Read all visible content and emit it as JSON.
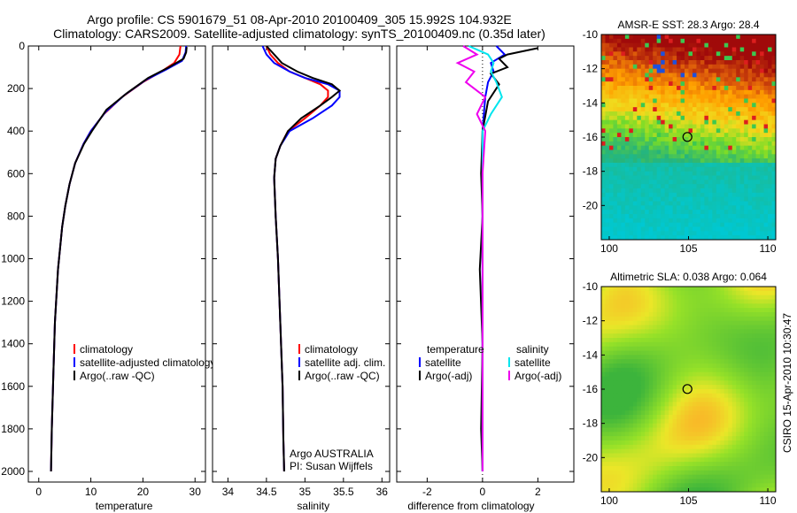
{
  "title": {
    "line1": "Argo profile: CS 5901679_51 08-Apr-2010 20100409_305 15.992S 104.932E",
    "line2": "Climatology: CARS2009. Satellite-adjusted climatology: synTS_20100409.nc (0.35d later)"
  },
  "credit": "CSIRO 15-Apr-2010 10:30:47",
  "chart_data": [
    {
      "id": "temperature",
      "type": "line",
      "xlabel": "temperature",
      "ylabel": "",
      "xlim": [
        -2,
        32
      ],
      "ylim": [
        2050,
        0
      ],
      "xticks": [
        0,
        10,
        20,
        30
      ],
      "yticks": [
        0,
        200,
        400,
        600,
        800,
        1000,
        1200,
        1400,
        1600,
        1800,
        2000
      ],
      "legend": [
        "climatology",
        "satellite-adjusted climatology",
        "Argo(..raw -QC)"
      ],
      "series": [
        {
          "name": "climatology",
          "color": "#ff0000",
          "x": [
            27.2,
            27.0,
            26.0,
            23.5,
            20.0,
            16.0,
            12.5,
            10.0,
            8.6,
            7.0,
            5.9,
            5.1,
            4.5,
            3.7,
            3.1,
            2.8,
            2.5,
            2.35
          ],
          "y": [
            0,
            40,
            80,
            120,
            170,
            240,
            320,
            400,
            460,
            550,
            650,
            750,
            850,
            1050,
            1300,
            1550,
            1800,
            2000
          ]
        },
        {
          "name": "satellite-adjusted climatology",
          "color": "#0000ff",
          "x": [
            28.3,
            28.2,
            27.5,
            24.5,
            20.5,
            16.5,
            12.8,
            10.0,
            8.6,
            7.0,
            5.9,
            5.1,
            4.5,
            3.7,
            3.1,
            2.8,
            2.5,
            2.35
          ],
          "y": [
            0,
            30,
            70,
            110,
            160,
            230,
            310,
            400,
            460,
            550,
            650,
            750,
            850,
            1050,
            1300,
            1550,
            1800,
            2000
          ]
        },
        {
          "name": "Argo(..raw -QC)",
          "color": "#000000",
          "x": [
            28.4,
            28.3,
            27.8,
            25.0,
            21.0,
            17.0,
            13.0,
            10.2,
            8.7,
            7.0,
            5.9,
            5.1,
            4.5,
            3.7,
            3.1,
            2.8,
            2.5,
            2.35
          ],
          "y": [
            5,
            30,
            60,
            100,
            150,
            220,
            300,
            400,
            460,
            550,
            650,
            750,
            850,
            1050,
            1300,
            1550,
            1800,
            2000
          ]
        }
      ]
    },
    {
      "id": "salinity",
      "type": "line",
      "xlabel": "salinity",
      "ylabel": "",
      "xlim": [
        33.8,
        36.1
      ],
      "ylim": [
        2050,
        0
      ],
      "xticks": [
        34,
        34.5,
        35,
        35.5,
        36
      ],
      "yticks": [],
      "legend": [
        "climatology",
        "satellite adj. clim.",
        "Argo(..raw -QC)"
      ],
      "annotation": [
        "Argo AUSTRALIA",
        "PI: Susan Wijffels"
      ],
      "series": [
        {
          "name": "climatology",
          "color": "#ff0000",
          "x": [
            34.5,
            34.55,
            34.65,
            34.8,
            35.0,
            35.2,
            35.3,
            35.3,
            35.2,
            35.0,
            34.78,
            34.68,
            34.62,
            34.6,
            34.62,
            34.65,
            34.68,
            34.71,
            34.72,
            34.73
          ],
          "y": [
            0,
            40,
            80,
            120,
            150,
            180,
            210,
            240,
            280,
            340,
            400,
            470,
            530,
            620,
            800,
            1000,
            1300,
            1600,
            1850,
            2000
          ]
        },
        {
          "name": "satellite adj. clim.",
          "color": "#0000ff",
          "x": [
            34.45,
            34.5,
            34.6,
            34.8,
            35.0,
            35.3,
            35.45,
            35.45,
            35.35,
            35.1,
            34.8,
            34.68,
            34.62,
            34.6,
            34.62,
            34.65,
            34.68,
            34.71,
            34.72,
            34.73
          ],
          "y": [
            0,
            40,
            80,
            120,
            150,
            180,
            210,
            240,
            280,
            340,
            400,
            470,
            530,
            620,
            800,
            1000,
            1300,
            1600,
            1850,
            2000
          ]
        },
        {
          "name": "Argo(..raw -QC)",
          "color": "#000000",
          "x": [
            34.5,
            34.6,
            34.7,
            34.9,
            35.1,
            35.35,
            35.45,
            35.35,
            35.2,
            34.95,
            34.78,
            34.68,
            34.62,
            34.6,
            34.62,
            34.65,
            34.68,
            34.71,
            34.72,
            34.73
          ],
          "y": [
            0,
            40,
            80,
            120,
            150,
            180,
            210,
            240,
            280,
            340,
            400,
            470,
            530,
            620,
            800,
            1000,
            1300,
            1600,
            1850,
            2000
          ]
        }
      ]
    },
    {
      "id": "difference",
      "type": "line",
      "xlabel": "difference from climatology",
      "ylabel": "",
      "xlim": [
        -3.1,
        3.3
      ],
      "ylim": [
        2050,
        0
      ],
      "xticks": [
        -2,
        0,
        2
      ],
      "yticks": [],
      "legend_left": [
        "temperature",
        "satellite",
        "Argo(-adj)"
      ],
      "legend_right": [
        "salinity",
        "satellite",
        "Argo(-adj)"
      ],
      "series": [
        {
          "name": "temperature satellite",
          "color": "#0000ff",
          "x": [
            0.5,
            0.8,
            0.3,
            0.4,
            0.2,
            0.1,
            0.05,
            0,
            0,
            0,
            0,
            0,
            0,
            0
          ],
          "y": [
            0,
            40,
            80,
            120,
            170,
            240,
            320,
            400,
            600,
            800,
            1000,
            1400,
            1800,
            2000
          ]
        },
        {
          "name": "temperature Argo(-adj)",
          "color": "#000000",
          "x": [
            2.0,
            0.9,
            0.6,
            0.9,
            0.3,
            0.6,
            0.2,
            0,
            -0.05,
            0,
            -0.1,
            0,
            -0.05,
            0
          ],
          "y": [
            10,
            40,
            60,
            100,
            130,
            180,
            260,
            400,
            600,
            800,
            1050,
            1400,
            1800,
            2000
          ]
        },
        {
          "name": "salinity satellite",
          "color": "#00e5ee",
          "x": [
            -0.5,
            0.2,
            0.4,
            0.3,
            0.5,
            0.7,
            0.3,
            0,
            0,
            0,
            0,
            0,
            0,
            0
          ],
          "y": [
            0,
            40,
            80,
            120,
            170,
            240,
            320,
            400,
            600,
            800,
            1000,
            1400,
            1800,
            2000
          ]
        },
        {
          "name": "salinity Argo(-adj)",
          "color": "#ee00ee",
          "x": [
            -0.7,
            -0.2,
            -0.9,
            -0.3,
            -0.6,
            0.1,
            -0.2,
            0.1,
            0,
            0,
            0,
            0,
            0,
            0
          ],
          "y": [
            0,
            40,
            80,
            120,
            170,
            240,
            320,
            400,
            600,
            800,
            1000,
            1400,
            1800,
            2000
          ]
        }
      ]
    },
    {
      "id": "sst-map",
      "type": "heatmap",
      "title": "AMSR-E SST: 28.3 Argo: 28.4",
      "xlim": [
        99.5,
        110.5
      ],
      "ylim": [
        -22,
        -10
      ],
      "xticks": [
        100,
        105,
        110
      ],
      "yticks": [
        -10,
        -12,
        -14,
        -16,
        -18,
        -20
      ],
      "marker": {
        "lon": 104.93,
        "lat": -15.99
      }
    },
    {
      "id": "sla-map",
      "type": "heatmap",
      "title": "Altimetric SLA: 0.038 Argo: 0.064",
      "xlim": [
        99.5,
        110.5
      ],
      "ylim": [
        -22,
        -10
      ],
      "xticks": [
        100,
        105,
        110
      ],
      "yticks": [
        -10,
        -12,
        -14,
        -16,
        -18,
        -20
      ],
      "marker": {
        "lon": 104.93,
        "lat": -15.99
      }
    }
  ]
}
